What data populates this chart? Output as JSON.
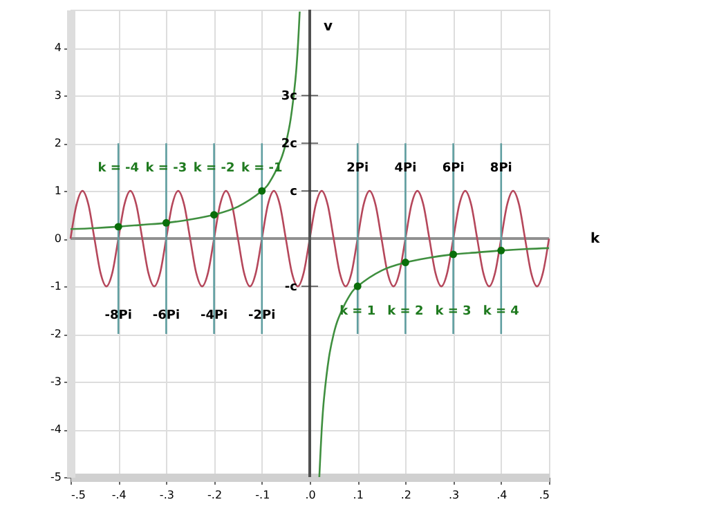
{
  "chart_data": {
    "type": "line",
    "xlabel": "k",
    "y2label": "v",
    "xlim": [
      -0.5,
      0.5
    ],
    "ylim": [
      -5,
      4.8
    ],
    "xticks": [
      {
        "value": -0.5,
        "label": "-.5"
      },
      {
        "value": -0.4,
        "label": "-.4"
      },
      {
        "value": -0.3,
        "label": "-.3"
      },
      {
        "value": -0.2,
        "label": "-.2"
      },
      {
        "value": -0.1,
        "label": "-.1"
      },
      {
        "value": 0,
        "label": ".0"
      },
      {
        "value": 0.1,
        "label": ".1"
      },
      {
        "value": 0.2,
        "label": ".2"
      },
      {
        "value": 0.3,
        "label": ".3"
      },
      {
        "value": 0.4,
        "label": ".4"
      },
      {
        "value": 0.5,
        "label": ".5"
      }
    ],
    "yticks": [
      -5,
      -4,
      -3,
      -2,
      -1,
      0,
      1,
      2,
      3,
      4
    ],
    "y2lim": [
      -5,
      4.8
    ],
    "y2ticks": [
      {
        "value": -1,
        "label": "-c"
      },
      {
        "value": 1,
        "label": "c"
      },
      {
        "value": 2,
        "label": "2c"
      },
      {
        "value": 3,
        "label": "3c"
      }
    ],
    "grid": true,
    "series": [
      {
        "color": "#b5475b",
        "x": [
          -0.5,
          -0.4875,
          -0.475,
          -0.4625,
          -0.45,
          -0.4375,
          -0.425,
          -0.4125,
          -0.4,
          -0.3875,
          -0.375,
          -0.3625,
          -0.35,
          -0.3375,
          -0.325,
          -0.3125,
          -0.3,
          -0.2875,
          -0.275,
          -0.2625,
          -0.25,
          -0.2375,
          -0.225,
          -0.2125,
          -0.2,
          -0.1875,
          -0.175,
          -0.1625,
          -0.15,
          -0.1375,
          -0.125,
          -0.1125,
          -0.1,
          -0.0875,
          -0.075,
          -0.0625,
          -0.05,
          -0.0375,
          -0.025,
          -0.0125,
          0,
          0.0125,
          0.025,
          0.0375,
          0.05,
          0.0625,
          0.075,
          0.0875,
          0.1,
          0.1125,
          0.125,
          0.1375,
          0.15,
          0.1625,
          0.175,
          0.1875,
          0.2,
          0.2125,
          0.225,
          0.2375,
          0.25,
          0.2625,
          0.275,
          0.2875,
          0.3,
          0.3125,
          0.325,
          0.3375,
          0.35,
          0.3625,
          0.375,
          0.3875,
          0.4,
          0.4125,
          0.425,
          0.4375,
          0.45,
          0.4625,
          0.475,
          0.4875,
          0.5
        ],
        "values": [
          0,
          0.71,
          1,
          0.71,
          0,
          -0.71,
          -1,
          -0.71,
          0,
          0.71,
          1,
          0.71,
          0,
          -0.71,
          -1,
          -0.71,
          0,
          0.71,
          1,
          0.71,
          0,
          -0.71,
          -1,
          -0.71,
          0,
          0.71,
          1,
          0.71,
          0,
          -0.71,
          -1,
          -0.71,
          0,
          0.71,
          1,
          0.71,
          0,
          -0.71,
          -1,
          -0.71,
          0,
          0.71,
          1,
          0.71,
          0,
          -0.71,
          -1,
          -0.71,
          0,
          0.71,
          1,
          0.71,
          0,
          -0.71,
          -1,
          -0.71,
          0,
          0.71,
          1,
          0.71,
          0,
          -0.71,
          -1,
          -0.71,
          0,
          0.71,
          1,
          0.71,
          0,
          -0.71,
          -1,
          -0.71,
          0,
          0.71,
          1,
          0.71,
          0,
          -0.71,
          -1,
          -0.71,
          0
        ]
      },
      {
        "color": "#3f8f3f",
        "x": [
          -0.5,
          -0.45,
          -0.4,
          -0.35,
          -0.3,
          -0.25,
          -0.2,
          -0.15,
          -0.1,
          -0.08,
          -0.06,
          -0.05,
          -0.04,
          -0.03,
          -0.025,
          -0.021
        ],
        "values": [
          0.2,
          0.22,
          0.25,
          0.29,
          0.33,
          0.4,
          0.5,
          0.67,
          1,
          1.25,
          1.67,
          2,
          2.5,
          3.33,
          4,
          4.76
        ]
      },
      {
        "color": "#3f8f3f",
        "x": [
          0.02,
          0.025,
          0.03,
          0.04,
          0.05,
          0.06,
          0.08,
          0.1,
          0.15,
          0.2,
          0.25,
          0.3,
          0.35,
          0.4,
          0.45,
          0.5
        ],
        "values": [
          -5,
          -4,
          -3.33,
          -2.5,
          -2,
          -1.67,
          -1.25,
          -1,
          -0.67,
          -0.5,
          -0.4,
          -0.33,
          -0.29,
          -0.25,
          -0.22,
          -0.2
        ]
      },
      {
        "color": "#5f9ea0",
        "x": [
          -0.4,
          -0.4
        ],
        "values": [
          -2,
          2
        ]
      },
      {
        "color": "#5f9ea0",
        "x": [
          -0.3,
          -0.3
        ],
        "values": [
          -2,
          2
        ]
      },
      {
        "color": "#5f9ea0",
        "x": [
          -0.2,
          -0.2
        ],
        "values": [
          -2,
          2
        ]
      },
      {
        "color": "#5f9ea0",
        "x": [
          -0.1,
          -0.1
        ],
        "values": [
          -2,
          2
        ]
      },
      {
        "color": "#5f9ea0",
        "x": [
          0.1,
          0.1
        ],
        "values": [
          -2,
          2
        ]
      },
      {
        "color": "#5f9ea0",
        "x": [
          0.2,
          0.2
        ],
        "values": [
          -2,
          2
        ]
      },
      {
        "color": "#5f9ea0",
        "x": [
          0.3,
          0.3
        ],
        "values": [
          -2,
          2
        ]
      },
      {
        "color": "#5f9ea0",
        "x": [
          0.4,
          0.4
        ],
        "values": [
          -2,
          2
        ]
      },
      {
        "type": "scatter",
        "color": "#0a6e0a",
        "x": [
          -0.4,
          -0.3,
          -0.2,
          -0.1,
          0.1,
          0.2,
          0.3,
          0.4
        ],
        "values": [
          0.25,
          0.33,
          0.5,
          1,
          -1,
          -0.5,
          -0.33,
          -0.25
        ]
      }
    ],
    "ref_lines": [
      {
        "axis": "y",
        "value": 0,
        "color": "#909090"
      }
    ],
    "annotations": [
      {
        "text": "k = -4",
        "x": -0.4,
        "y": 1.5
      },
      {
        "text": "k = -3",
        "x": -0.3,
        "y": 1.5
      },
      {
        "text": "k = -2",
        "x": -0.2,
        "y": 1.5
      },
      {
        "text": "k = -1",
        "x": -0.1,
        "y": 1.5
      },
      {
        "text": "k = 1",
        "x": 0.1,
        "y": -1.5
      },
      {
        "text": "k = 2",
        "x": 0.2,
        "y": -1.5
      },
      {
        "text": "k = 3",
        "x": 0.3,
        "y": -1.5
      },
      {
        "text": "k = 4",
        "x": 0.4,
        "y": -1.5
      },
      {
        "text": "-8Pi",
        "x": -0.4,
        "y": -1.6
      },
      {
        "text": "-6Pi",
        "x": -0.3,
        "y": -1.6
      },
      {
        "text": "-4Pi",
        "x": -0.2,
        "y": -1.6
      },
      {
        "text": "-2Pi",
        "x": -0.1,
        "y": -1.6
      },
      {
        "text": "2Pi",
        "x": 0.1,
        "y": 1.5
      },
      {
        "text": "4Pi",
        "x": 0.2,
        "y": 1.5
      },
      {
        "text": "6Pi",
        "x": 0.3,
        "y": 1.5
      },
      {
        "text": "8Pi",
        "x": 0.4,
        "y": 1.5
      }
    ]
  }
}
